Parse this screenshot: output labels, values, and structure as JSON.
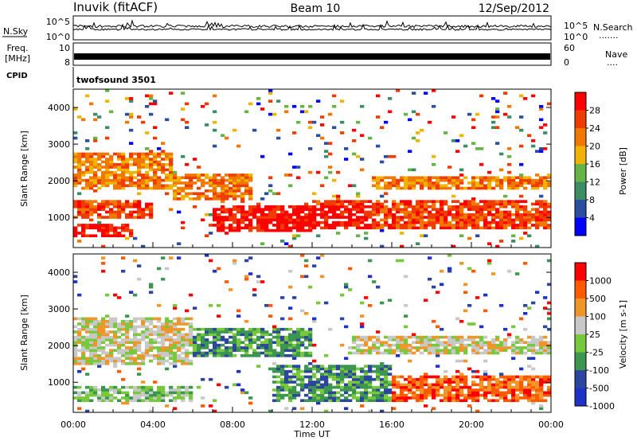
{
  "header": {
    "station": "Inuvik (fitACF)",
    "beam": "Beam 10",
    "date": "12/Sep/2012"
  },
  "top_panels": {
    "nsky_label": "N.Sky",
    "nsky_ticks": [
      "10^5",
      "10^0"
    ],
    "nsearch_label": "N.Search",
    "nsearch_ticks": [
      "10^5",
      "10^0"
    ],
    "nsearch_dots": ".......",
    "freq_label_1": "Freq.",
    "freq_label_2": "[MHz]",
    "freq_ticks": [
      "10",
      "8"
    ],
    "nave_label": "Nave",
    "nave_dots": "....",
    "nave_ticks": [
      "60",
      "0"
    ],
    "cpid_label": "CPID",
    "cpid_value": "twofsound 3501"
  },
  "colors": {
    "power": [
      "#0000ff",
      "#2a4fa0",
      "#3c8c64",
      "#64b446",
      "#f0b400",
      "#f07800",
      "#f03c00",
      "#ff0000"
    ],
    "velocity": [
      "#ff0000",
      "#ff5a00",
      "#f09628",
      "#c8c8c8",
      "#78c83c",
      "#3c9650",
      "#2c46a0",
      "#1e32c8"
    ],
    "trace": "#000000"
  },
  "chart_data": [
    {
      "type": "heatmap",
      "panel": "power",
      "ylabel": "Slant Range [km]",
      "yticks": [
        "4000",
        "3000",
        "2000",
        "1000"
      ],
      "ytick_values": [
        4000,
        3000,
        2000,
        1000
      ],
      "ylim": [
        180,
        4500
      ],
      "xlim_hours": [
        0,
        24
      ],
      "colorbar_label": "Power [dB]",
      "colorbar_ticks": [
        "28",
        "24",
        "20",
        "16",
        "12",
        "8",
        "4"
      ],
      "colorbar_tick_values": [
        28,
        24,
        20,
        16,
        12,
        8,
        4
      ],
      "colorbar_range": [
        0,
        32
      ],
      "bands": [
        {
          "t": [
            0,
            3
          ],
          "r": [
            500,
            800
          ],
          "level": 7
        },
        {
          "t": [
            0,
            4
          ],
          "r": [
            1000,
            1500
          ],
          "level": 6
        },
        {
          "t": [
            0,
            5
          ],
          "r": [
            1800,
            2800
          ],
          "level": 5
        },
        {
          "t": [
            5,
            9
          ],
          "r": [
            1500,
            2200
          ],
          "level": 5
        },
        {
          "t": [
            7,
            12
          ],
          "r": [
            600,
            1300
          ],
          "level": 7
        },
        {
          "t": [
            10,
            15
          ],
          "r": [
            700,
            1300
          ],
          "level": 7
        },
        {
          "t": [
            12,
            24
          ],
          "r": [
            700,
            1500
          ],
          "level": 6
        },
        {
          "t": [
            15,
            24
          ],
          "r": [
            1800,
            2100
          ],
          "level": 5
        }
      ]
    },
    {
      "type": "heatmap",
      "panel": "velocity",
      "ylabel": "Slant Range [km]",
      "yticks": [
        "4000",
        "3000",
        "2000",
        "1000"
      ],
      "ytick_values": [
        4000,
        3000,
        2000,
        1000
      ],
      "ylim": [
        180,
        4500
      ],
      "xlim_hours": [
        0,
        24
      ],
      "xticks": [
        "00:00",
        "04:00",
        "08:00",
        "12:00",
        "16:00",
        "20:00",
        "00:00"
      ],
      "xlabel": "Time UT",
      "colorbar_label": "Velocity [m s-1]",
      "colorbar_ticks": [
        "1000",
        "500",
        "100",
        "25",
        "-25",
        "-100",
        "-500",
        "-1000"
      ],
      "colorbar_tick_values": [
        1000,
        500,
        100,
        25,
        -25,
        -100,
        -500,
        -1000
      ],
      "bands": [
        {
          "t": [
            0,
            6
          ],
          "r": [
            500,
            900
          ],
          "level": 4
        },
        {
          "t": [
            0,
            6
          ],
          "r": [
            1500,
            2800
          ],
          "level": 3
        },
        {
          "t": [
            6,
            12
          ],
          "r": [
            1700,
            2500
          ],
          "level": 5
        },
        {
          "t": [
            10,
            16
          ],
          "r": [
            500,
            1500
          ],
          "level": 5
        },
        {
          "t": [
            16,
            24
          ],
          "r": [
            500,
            1200
          ],
          "level": 1
        },
        {
          "t": [
            14,
            24
          ],
          "r": [
            1800,
            2300
          ],
          "level": 3
        }
      ]
    }
  ]
}
